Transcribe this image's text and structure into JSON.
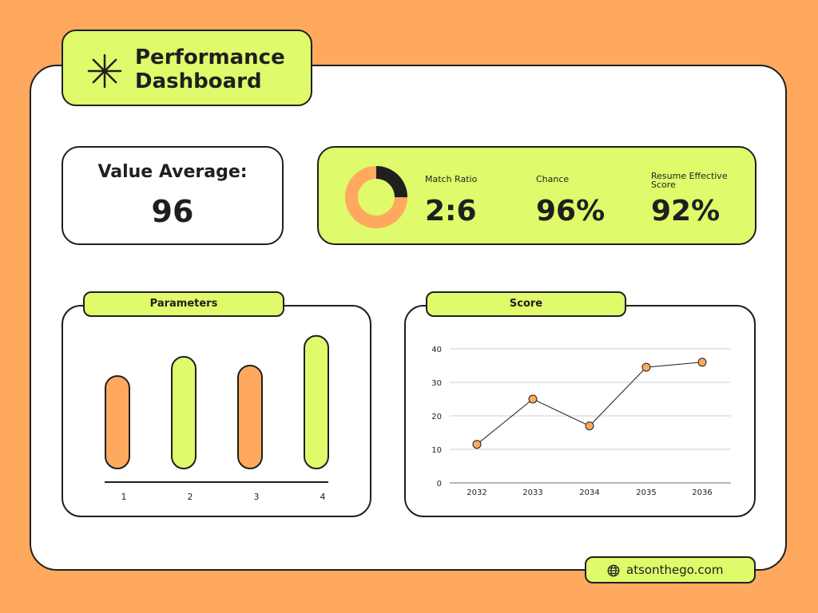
{
  "page_title": "Performance Dashboard",
  "value_average": {
    "label": "Value Average:",
    "value": "96"
  },
  "stats": [
    {
      "label": "Match Ratio",
      "value": "2:6"
    },
    {
      "label": "Chance",
      "value": "96%"
    },
    {
      "label": "Resume Effective Score",
      "value": "92%"
    }
  ],
  "donut": {
    "dark_fraction": 0.25,
    "dark_color": "#1f1f1f",
    "light_color": "#FFA95E"
  },
  "website": "atsonthego.com",
  "colors": {
    "background": "#FFA95E",
    "accent": "#DFFA6A",
    "ink": "#1f1f1f",
    "orange": "#FFA95E",
    "lime": "#DFFA6A"
  },
  "icons": {
    "title": "asterisk-icon",
    "website": "globe-icon"
  },
  "chart_data": [
    {
      "type": "bar",
      "title": "Parameters",
      "categories": [
        "1",
        "2",
        "3",
        "4"
      ],
      "values": [
        53,
        64,
        59,
        76
      ],
      "bar_colors": [
        "#FFA95E",
        "#DFFA6A",
        "#FFA95E",
        "#DFFA6A"
      ],
      "ylim": [
        0,
        80
      ],
      "grid": false,
      "legend": "none"
    },
    {
      "type": "line",
      "title": "Score",
      "x": [
        "2032",
        "2033",
        "2034",
        "2035",
        "2036"
      ],
      "values": [
        11.5,
        25,
        17,
        34.5,
        36
      ],
      "ylim": [
        0,
        40
      ],
      "yticks": [
        "0",
        "10",
        "20",
        "30",
        "40"
      ],
      "grid": true,
      "legend": "none",
      "line_color": "#1f1f1f",
      "marker_color": "#FFA95E"
    }
  ]
}
